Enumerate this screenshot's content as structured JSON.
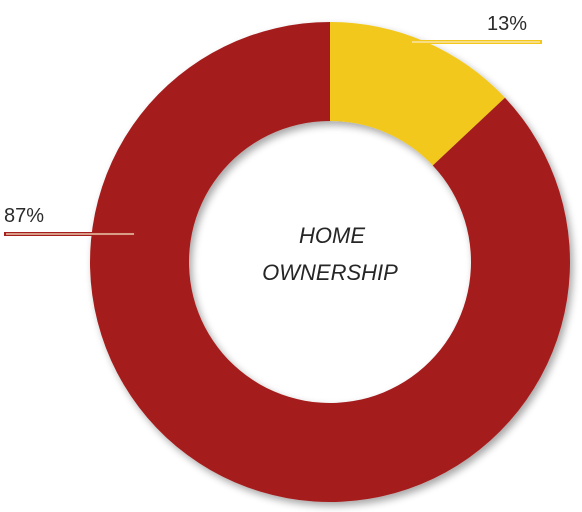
{
  "chart_data": {
    "type": "pie",
    "variant": "donut",
    "center_label": [
      "HOME",
      "OWNERSHIP"
    ],
    "slices": [
      {
        "value": 13,
        "label": "13%",
        "color": "#f2c81a"
      },
      {
        "value": 87,
        "label": "87%",
        "color": "#a51f1f"
      }
    ],
    "start_angle": "12 o'clock",
    "direction": "clockwise",
    "label_leader_color_13": "#f2c81a",
    "label_leader_color_87": "#a51f1f",
    "legend": "none",
    "background": "#ffffff"
  }
}
